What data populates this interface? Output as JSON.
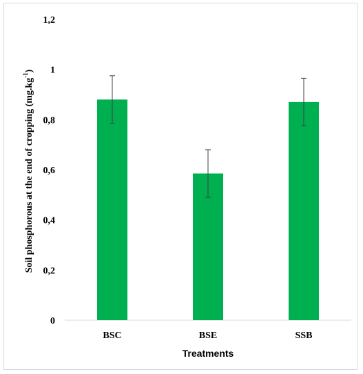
{
  "chart_data": {
    "type": "bar",
    "categories": [
      "BSC",
      "BSE",
      "SSB"
    ],
    "values": [
      0.88,
      0.585,
      0.87
    ],
    "error": [
      0.095,
      0.095,
      0.095
    ],
    "xlabel": "Treatments",
    "ylabel_main": "Soil phosphorous  at the end of cropping (mg.kg",
    "ylabel_sup": "-1",
    "ylabel_end": ")",
    "ylim": [
      0,
      1.2
    ],
    "yticks": [
      "0",
      "0,2",
      "0,4",
      "0,6",
      "0,8",
      "1",
      "1,2"
    ],
    "yticks_values": [
      0,
      0.2,
      0.4,
      0.6,
      0.8,
      1.0,
      1.2
    ],
    "bar_color": "#00b050",
    "error_color": "#404040",
    "grid": false
  }
}
